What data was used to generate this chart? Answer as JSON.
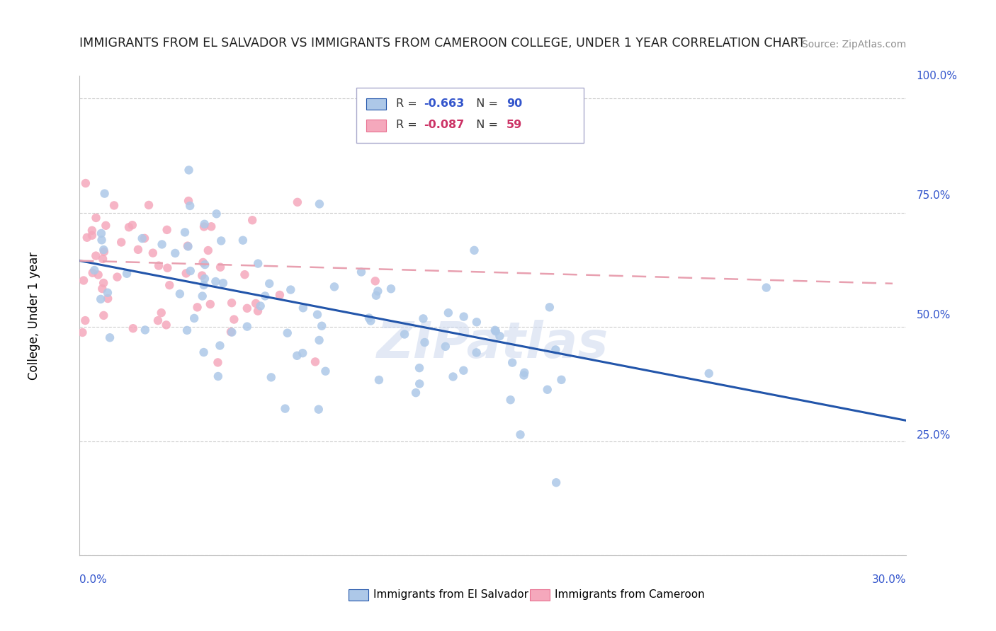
{
  "title": "IMMIGRANTS FROM EL SALVADOR VS IMMIGRANTS FROM CAMEROON COLLEGE, UNDER 1 YEAR CORRELATION CHART",
  "source": "Source: ZipAtlas.com",
  "legend_blue_label": "Immigrants from El Salvador",
  "legend_pink_label": "Immigrants from Cameroon",
  "blue_color": "#adc8e8",
  "pink_color": "#f5a8bc",
  "blue_line_color": "#2255aa",
  "pink_line_color": "#e87090",
  "pink_line_dash_color": "#e8a0b0",
  "title_color": "#202020",
  "source_color": "#909090",
  "axis_label_color": "#3355cc",
  "grid_color": "#cccccc",
  "watermark": "ZIPatlas",
  "blue_R": -0.663,
  "blue_N": 90,
  "pink_R": -0.087,
  "pink_N": 59,
  "xlim": [
    0.0,
    0.3
  ],
  "ylim": [
    0.0,
    1.05
  ],
  "blue_trend_x0": 0.0,
  "blue_trend_y0": 0.645,
  "blue_trend_x1": 0.3,
  "blue_trend_y1": 0.295,
  "pink_trend_x0": 0.0,
  "pink_trend_y0": 0.645,
  "pink_trend_x1": 0.295,
  "pink_trend_y1": 0.595
}
